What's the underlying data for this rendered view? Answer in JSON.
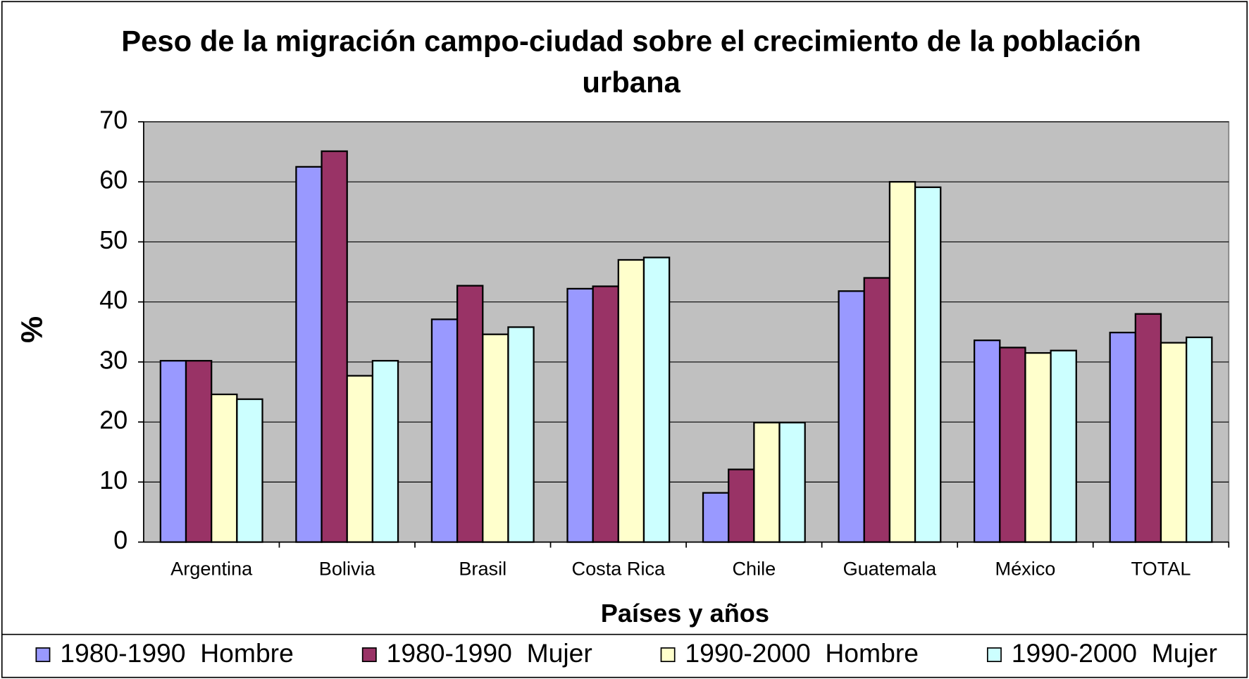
{
  "chart_data": {
    "type": "bar",
    "title": "Peso de la migración campo-ciudad sobre el crecimiento de la población urbana",
    "x_label": "Países y años",
    "y_label": "%",
    "categories": [
      "Argentina",
      "Bolivia",
      "Brasil",
      "Costa Rica",
      "Chile",
      "Guatemala",
      "México",
      "TOTAL"
    ],
    "series": [
      {
        "name": "1980-1990  Hombre",
        "color": "#9999ff",
        "values": [
          30.2,
          62.5,
          37.1,
          42.2,
          8.2,
          41.8,
          33.6,
          34.9
        ]
      },
      {
        "name": "1980-1990  Mujer",
        "color": "#993366",
        "values": [
          30.2,
          65.1,
          42.7,
          42.6,
          12.1,
          44.0,
          32.4,
          38.0
        ]
      },
      {
        "name": "1990-2000  Hombre",
        "color": "#ffffcc",
        "values": [
          24.6,
          27.7,
          34.6,
          47.0,
          19.9,
          60.0,
          31.5,
          33.2
        ]
      },
      {
        "name": "1990-2000  Mujer",
        "color": "#ccffff",
        "values": [
          23.8,
          30.2,
          35.8,
          47.4,
          19.9,
          59.1,
          31.9,
          34.1
        ]
      }
    ],
    "ylim": [
      0,
      70
    ],
    "yticks": [
      0,
      10,
      20,
      30,
      40,
      50,
      60,
      70
    ],
    "grid": true,
    "legend": "bottom"
  }
}
